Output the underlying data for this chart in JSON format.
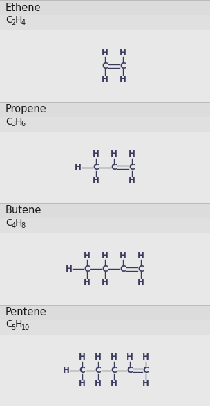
{
  "bg_section_name": "#dcdcdc",
  "bg_formula": "#e0e0e0",
  "bg_structure": "#e8e8e8",
  "text_color": "#3a3a5c",
  "title_color": "#1a1a1a",
  "fig_width": 3.04,
  "fig_height": 5.86,
  "dpi": 100,
  "sections": [
    {
      "name": "Ethene",
      "formula_parts": [
        [
          "C",
          "2"
        ],
        [
          "H",
          "4"
        ]
      ],
      "structure": "ethene"
    },
    {
      "name": "Propene",
      "formula_parts": [
        [
          "C",
          "3"
        ],
        [
          "H",
          "6"
        ]
      ],
      "structure": "propene"
    },
    {
      "name": "Butene",
      "formula_parts": [
        [
          "C",
          "4"
        ],
        [
          "H",
          "8"
        ]
      ],
      "structure": "butene"
    },
    {
      "name": "Pentene",
      "formula_parts": [
        [
          "C",
          "5"
        ],
        [
          "H",
          "10"
        ]
      ],
      "structure": "pentene"
    }
  ]
}
